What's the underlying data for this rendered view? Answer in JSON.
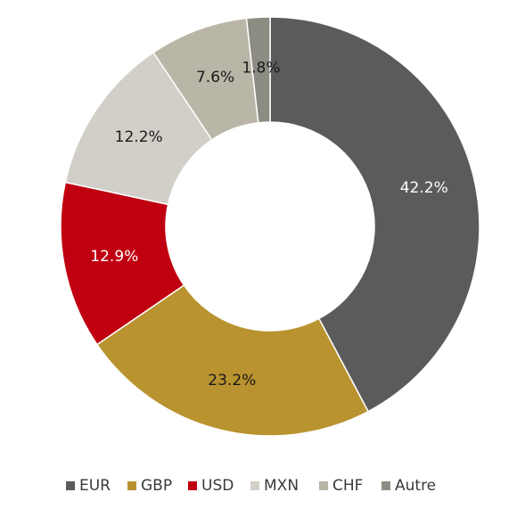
{
  "chart_data": {
    "type": "pie",
    "donut": true,
    "categories": [
      "EUR",
      "GBP",
      "USD",
      "MXN",
      "CHF",
      "Autre"
    ],
    "values": [
      42.2,
      23.2,
      12.9,
      12.2,
      7.6,
      1.8
    ],
    "labels": [
      "42.2%",
      "23.2%",
      "12.9%",
      "12.2%",
      "7.6%",
      "1.8%"
    ],
    "colors": [
      "#5a5b5a",
      "#b9932f",
      "#c00010",
      "#d1cfc7",
      "#b9b5a7",
      "#8d8c83"
    ],
    "label_colors": [
      "#ffffff",
      "#1a1a1a",
      "#ffffff",
      "#1a1a1a",
      "#1a1a1a",
      "#1a1a1a"
    ],
    "legend_position": "bottom",
    "start": "top",
    "direction": "clockwise"
  }
}
